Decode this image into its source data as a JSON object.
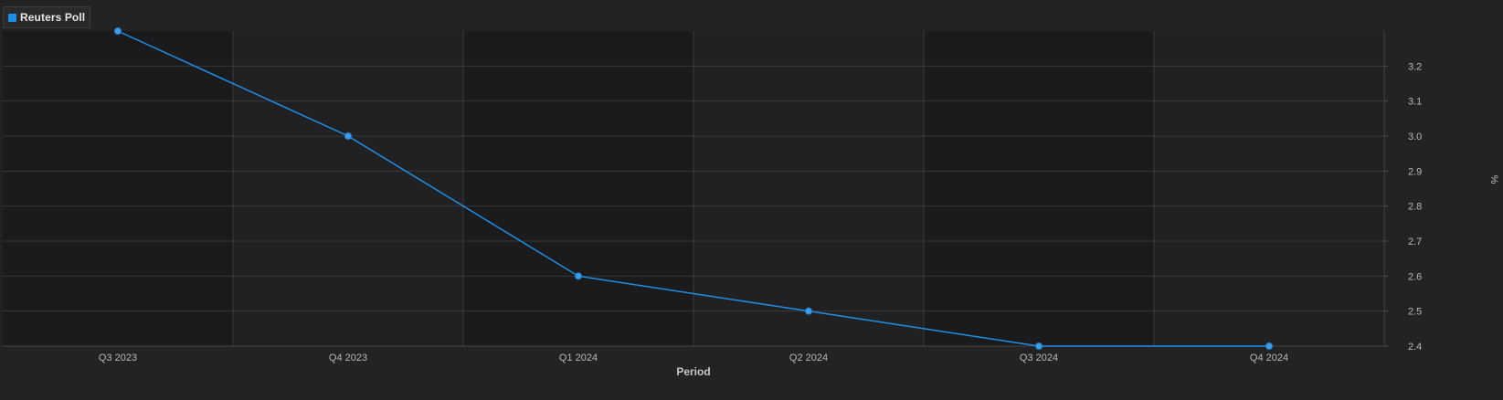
{
  "legend": {
    "label": "Reuters Poll",
    "icon": "square-swatch-icon"
  },
  "colors": {
    "background": "#232325",
    "plot_band_dark": "#1b1b1d",
    "plot_band_light": "#212123",
    "grid": "#38383b",
    "series": "#1f8fe6",
    "marker": "#3d9de8"
  },
  "chart_data": {
    "type": "line",
    "categories": [
      "Q3 2023",
      "Q4 2023",
      "Q1 2024",
      "Q2 2024",
      "Q3 2024",
      "Q4 2024"
    ],
    "series": [
      {
        "name": "Reuters Poll",
        "values": [
          3.3,
          3.0,
          2.6,
          2.5,
          2.4,
          2.4
        ]
      }
    ],
    "xlabel": "Period",
    "ylabel": "%",
    "ylim": [
      2.4,
      3.3
    ],
    "yticks": [
      "2.4",
      "2.5",
      "2.6",
      "2.7",
      "2.8",
      "2.9",
      "3.0",
      "3.1",
      "3.2"
    ],
    "y_axis_position": "right",
    "grid": true,
    "legend_position": "top-left"
  }
}
